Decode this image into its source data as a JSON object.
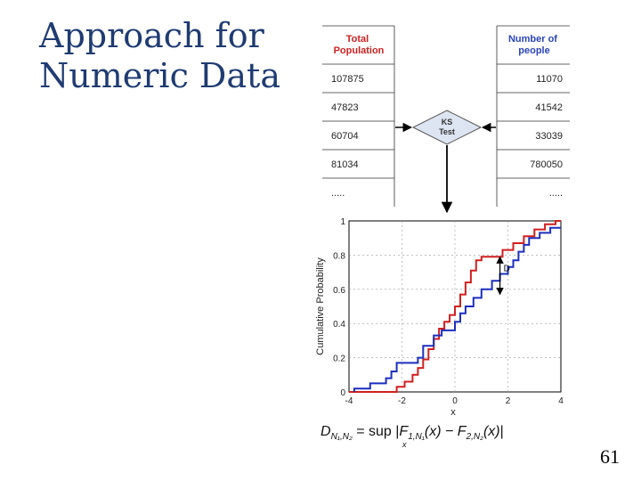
{
  "slide": {
    "title_line1": "Approach for",
    "title_line2": "Numeric Data",
    "number": "61"
  },
  "left_table": {
    "header": "Total\nPopulation",
    "rows": [
      "107875",
      "47823",
      "60704",
      "81034",
      "....."
    ]
  },
  "right_table": {
    "header": "Number of\npeople",
    "rows": [
      "11070",
      "41542",
      "33039",
      "780050",
      "....."
    ]
  },
  "ks_box": {
    "line1": "KS",
    "line2": "Test"
  },
  "chart_data": {
    "type": "line",
    "xlabel": "x",
    "ylabel": "Cumulative Probability",
    "xlim": [
      -4,
      4
    ],
    "ylim": [
      0,
      1
    ],
    "xticks": [
      "-4",
      "-2",
      "0",
      "2",
      "4"
    ],
    "yticks": [
      "0",
      "0.2",
      "0.4",
      "0.6",
      "0.8",
      "1"
    ],
    "grid": true,
    "annotation": "D",
    "annotation_x": 1.7,
    "annotation_y_range": [
      0.57,
      0.79
    ],
    "series": [
      {
        "color": "#d11f1f",
        "points": [
          [
            -4,
            0
          ],
          [
            -2.2,
            0
          ],
          [
            -2.2,
            0.03
          ],
          [
            -1.9,
            0.03
          ],
          [
            -1.9,
            0.06
          ],
          [
            -1.6,
            0.06
          ],
          [
            -1.6,
            0.1
          ],
          [
            -1.4,
            0.1
          ],
          [
            -1.4,
            0.14
          ],
          [
            -1.2,
            0.14
          ],
          [
            -1.2,
            0.19
          ],
          [
            -1.0,
            0.19
          ],
          [
            -1.0,
            0.25
          ],
          [
            -0.8,
            0.25
          ],
          [
            -0.8,
            0.31
          ],
          [
            -0.6,
            0.31
          ],
          [
            -0.6,
            0.37
          ],
          [
            -0.4,
            0.37
          ],
          [
            -0.4,
            0.41
          ],
          [
            -0.2,
            0.41
          ],
          [
            -0.2,
            0.45
          ],
          [
            0,
            0.45
          ],
          [
            0,
            0.5
          ],
          [
            0.2,
            0.5
          ],
          [
            0.2,
            0.57
          ],
          [
            0.4,
            0.57
          ],
          [
            0.4,
            0.64
          ],
          [
            0.6,
            0.64
          ],
          [
            0.6,
            0.71
          ],
          [
            0.8,
            0.71
          ],
          [
            0.8,
            0.77
          ],
          [
            1.0,
            0.77
          ],
          [
            1.0,
            0.79
          ],
          [
            1.8,
            0.79
          ],
          [
            1.8,
            0.83
          ],
          [
            2.2,
            0.83
          ],
          [
            2.2,
            0.87
          ],
          [
            2.6,
            0.87
          ],
          [
            2.6,
            0.91
          ],
          [
            3.0,
            0.91
          ],
          [
            3.0,
            0.95
          ],
          [
            3.4,
            0.95
          ],
          [
            3.4,
            0.98
          ],
          [
            3.8,
            0.98
          ],
          [
            3.8,
            1.0
          ],
          [
            4,
            1.0
          ]
        ]
      },
      {
        "color": "#1c2fbf",
        "points": [
          [
            -3.8,
            0
          ],
          [
            -3.8,
            0.02
          ],
          [
            -3.2,
            0.02
          ],
          [
            -3.2,
            0.05
          ],
          [
            -2.6,
            0.05
          ],
          [
            -2.6,
            0.08
          ],
          [
            -2.4,
            0.08
          ],
          [
            -2.4,
            0.12
          ],
          [
            -2.2,
            0.12
          ],
          [
            -2.2,
            0.17
          ],
          [
            -1.4,
            0.17
          ],
          [
            -1.4,
            0.2
          ],
          [
            -1.2,
            0.2
          ],
          [
            -1.2,
            0.27
          ],
          [
            -0.8,
            0.27
          ],
          [
            -0.8,
            0.33
          ],
          [
            -0.5,
            0.33
          ],
          [
            -0.5,
            0.36
          ],
          [
            0,
            0.36
          ],
          [
            0,
            0.41
          ],
          [
            0.2,
            0.41
          ],
          [
            0.2,
            0.46
          ],
          [
            0.4,
            0.46
          ],
          [
            0.4,
            0.5
          ],
          [
            0.7,
            0.5
          ],
          [
            0.7,
            0.55
          ],
          [
            1.0,
            0.55
          ],
          [
            1.0,
            0.6
          ],
          [
            1.4,
            0.6
          ],
          [
            1.4,
            0.65
          ],
          [
            1.7,
            0.65
          ],
          [
            1.7,
            0.69
          ],
          [
            2.0,
            0.69
          ],
          [
            2.0,
            0.73
          ],
          [
            2.2,
            0.73
          ],
          [
            2.2,
            0.77
          ],
          [
            2.4,
            0.77
          ],
          [
            2.4,
            0.82
          ],
          [
            2.6,
            0.82
          ],
          [
            2.6,
            0.86
          ],
          [
            2.8,
            0.86
          ],
          [
            2.8,
            0.9
          ],
          [
            3.2,
            0.9
          ],
          [
            3.2,
            0.93
          ],
          [
            3.6,
            0.93
          ],
          [
            3.6,
            0.96
          ],
          [
            4,
            0.96
          ]
        ]
      }
    ]
  }
}
